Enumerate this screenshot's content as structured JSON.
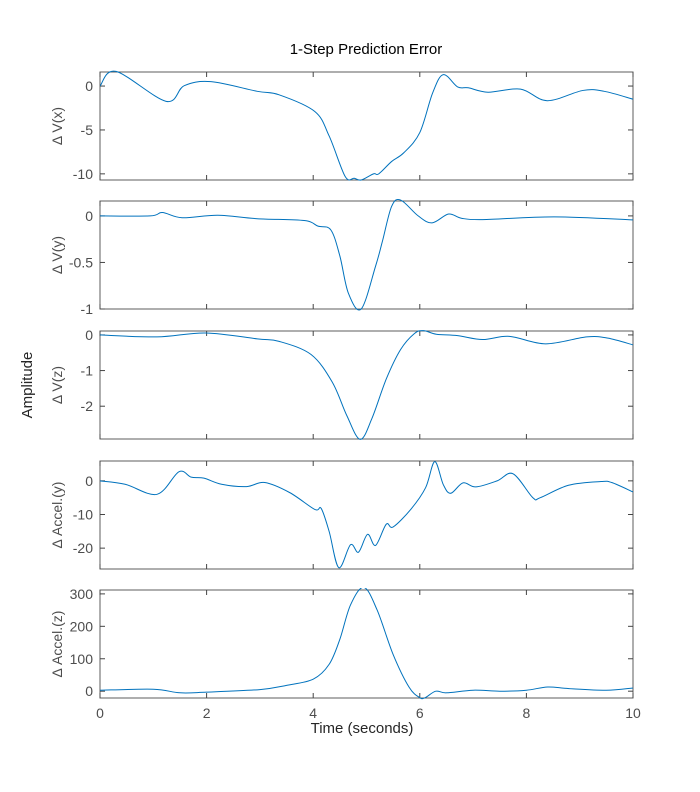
{
  "chart_data": {
    "type": "line",
    "title": "1-Step Prediction Error",
    "shared_ylabel": "Amplitude",
    "xlabel": "Time (seconds)",
    "xlim": [
      0,
      10
    ],
    "xticks": [
      0,
      2,
      4,
      6,
      8,
      10
    ],
    "grid": false,
    "line_color": "#0072BD",
    "subplots": [
      {
        "ylabel": "Δ V(x)",
        "ylim": [
          -10.7,
          1.6
        ],
        "yticks": [
          0,
          -5,
          -10
        ],
        "x": [
          0,
          0.3,
          1.24,
          1.58,
          2.08,
          2.95,
          3.36,
          4.03,
          4.3,
          4.6,
          4.77,
          4.9,
          5.13,
          5.23,
          5.47,
          5.7,
          6.0,
          6.24,
          6.44,
          6.71,
          6.91,
          7.28,
          7.89,
          8.39,
          9.06,
          9.46,
          10
        ],
        "y": [
          0,
          1.67,
          -1.74,
          0.04,
          0.5,
          -0.6,
          -1.0,
          -2.9,
          -5.7,
          -10.3,
          -10.5,
          -10.7,
          -10.0,
          -10.0,
          -8.6,
          -7.6,
          -5.3,
          -0.8,
          1.3,
          -0.1,
          -0.2,
          -0.7,
          -0.35,
          -1.67,
          -0.5,
          -0.6,
          -1.5
        ]
      },
      {
        "ylabel": "Δ V(y)",
        "ylim": [
          -1.0,
          0.16
        ],
        "yticks": [
          0,
          -0.5,
          -1
        ],
        "x": [
          0,
          0.94,
          1.17,
          1.54,
          2.21,
          2.95,
          3.83,
          4.09,
          4.33,
          4.5,
          4.66,
          4.9,
          5.17,
          5.3,
          5.47,
          5.64,
          5.97,
          6.23,
          6.54,
          6.78,
          7.18,
          8.52,
          10
        ],
        "y": [
          0,
          0,
          0.036,
          -0.02,
          0.007,
          -0.03,
          -0.05,
          -0.11,
          -0.15,
          -0.43,
          -0.83,
          -1.0,
          -0.54,
          -0.27,
          0.1,
          0.17,
          0,
          -0.075,
          0.02,
          -0.025,
          -0.04,
          -0.01,
          -0.043
        ]
      },
      {
        "ylabel": "Δ V(z)",
        "ylim": [
          -2.92,
          0.11
        ],
        "yticks": [
          0,
          -1,
          -2
        ],
        "x": [
          0,
          1.07,
          1.98,
          2.95,
          3.36,
          3.96,
          4.36,
          4.63,
          4.88,
          5.1,
          5.37,
          5.64,
          5.9,
          6.07,
          6.31,
          6.71,
          7.18,
          7.68,
          8.36,
          9.13,
          9.53,
          10
        ],
        "y": [
          0,
          -0.055,
          0.055,
          -0.11,
          -0.18,
          -0.55,
          -1.33,
          -2.26,
          -2.93,
          -2.35,
          -1.24,
          -0.41,
          0.04,
          0.12,
          0.02,
          -0.02,
          -0.13,
          -0.04,
          -0.25,
          -0.055,
          -0.09,
          -0.28
        ]
      },
      {
        "ylabel": "Δ Accel.(y)",
        "ylim": [
          -26.2,
          5.9
        ],
        "yticks": [
          0,
          -10,
          -20
        ],
        "x": [
          0,
          0.47,
          1.07,
          1.48,
          1.71,
          1.95,
          2.28,
          2.75,
          3.09,
          3.56,
          4.03,
          4.15,
          4.3,
          4.48,
          4.7,
          4.85,
          5.02,
          5.17,
          5.37,
          5.5,
          5.84,
          6.11,
          6.28,
          6.44,
          6.58,
          6.81,
          7.05,
          7.45,
          7.75,
          8.12,
          8.26,
          8.79,
          9.4,
          9.6,
          10
        ],
        "y": [
          0,
          -1,
          -4,
          2.7,
          1.1,
          0.8,
          -1,
          -1.7,
          -0.5,
          -3.5,
          -8.5,
          -8.2,
          -15.1,
          -25.8,
          -19,
          -21.2,
          -15.9,
          -19.2,
          -12.9,
          -13.7,
          -8.3,
          -2,
          5.7,
          -1.1,
          -3.7,
          -0.6,
          -1.8,
          0,
          2.1,
          -5,
          -5,
          -1.3,
          -0.2,
          -0.5,
          -3.3
        ]
      },
      {
        "ylabel": "Δ Accel.(z)",
        "ylim": [
          -21,
          312
        ],
        "yticks": [
          0,
          100,
          200,
          300
        ],
        "x": [
          0,
          1.0,
          1.5,
          2.0,
          3.0,
          3.5,
          4.0,
          4.3,
          4.5,
          4.7,
          4.95,
          5.2,
          5.5,
          5.8,
          6.0,
          6.1,
          6.3,
          6.5,
          7.0,
          7.5,
          8.0,
          8.4,
          8.8,
          9.5,
          10
        ],
        "y": [
          3,
          6,
          -5,
          -3,
          5,
          18,
          37,
          83,
          160,
          266,
          320,
          250,
          113,
          12,
          -20,
          -20,
          0,
          -5,
          3,
          0,
          3,
          13,
          8,
          3,
          10
        ]
      }
    ]
  }
}
